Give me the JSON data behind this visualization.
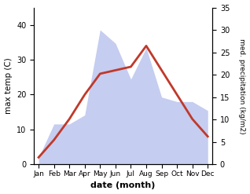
{
  "months": [
    "Jan",
    "Feb",
    "Mar",
    "Apr",
    "May",
    "Jun",
    "Jul",
    "Aug",
    "Sep",
    "Oct",
    "Nov",
    "Dec"
  ],
  "temperature": [
    2,
    7,
    13,
    20,
    26,
    27,
    28,
    34,
    27,
    20,
    13,
    8
  ],
  "precipitation": [
    1.5,
    9,
    9,
    11,
    30,
    27,
    19,
    26,
    15,
    14,
    14,
    12
  ],
  "temp_color": "#c0392b",
  "precip_fill_color": "#c5cdf0",
  "xlabel": "date (month)",
  "ylabel_left": "max temp (C)",
  "ylabel_right": "med. precipitation (kg/m2)",
  "ylim_left": [
    0,
    45
  ],
  "ylim_right": [
    0,
    35
  ],
  "yticks_left": [
    0,
    10,
    20,
    30,
    40
  ],
  "yticks_right": [
    0,
    5,
    10,
    15,
    20,
    25,
    30,
    35
  ],
  "figsize": [
    3.18,
    2.47
  ],
  "dpi": 100
}
